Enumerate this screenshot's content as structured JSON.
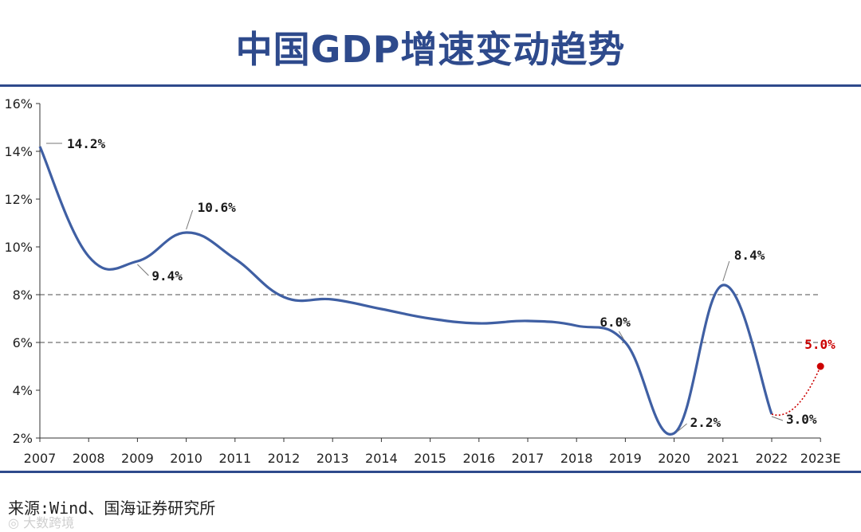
{
  "title": "中国GDP增速变动趋势",
  "source": "来源:Wind、国海证券研究所",
  "watermark": "大数跨境",
  "colors": {
    "title": "#2e4a8c",
    "rule": "#2e4a8c",
    "line": "#3f5fa3",
    "forecast": "#cc0000",
    "refline": "#888888",
    "axis": "#333333"
  },
  "chart_data": {
    "type": "line",
    "title": "中国GDP增速变动趋势",
    "xlabel": "",
    "ylabel": "",
    "categories": [
      "2007",
      "2008",
      "2009",
      "2010",
      "2011",
      "2012",
      "2013",
      "2014",
      "2015",
      "2016",
      "2017",
      "2018",
      "2019",
      "2020",
      "2021",
      "2022",
      "2023E"
    ],
    "ylim": [
      2,
      16
    ],
    "yticks": [
      2,
      4,
      6,
      8,
      10,
      12,
      14,
      16
    ],
    "ytick_labels": [
      "2%",
      "4%",
      "6%",
      "8%",
      "10%",
      "12%",
      "14%",
      "16%"
    ],
    "grid": false,
    "reference_lines": [
      8,
      6
    ],
    "series": [
      {
        "values": [
          14.2,
          9.6,
          9.4,
          10.6,
          9.5,
          7.9,
          7.8,
          7.4,
          7.0,
          6.8,
          6.9,
          6.7,
          6.0,
          2.2,
          8.4,
          3.0,
          null
        ],
        "style": "solid smooth"
      },
      {
        "values": [
          null,
          null,
          null,
          null,
          null,
          null,
          null,
          null,
          null,
          null,
          null,
          null,
          null,
          null,
          null,
          3.0,
          5.0
        ],
        "style": "dotted forecast"
      }
    ],
    "annotations": [
      {
        "category": "2007",
        "value": 14.2,
        "text": "14.2%"
      },
      {
        "category": "2009",
        "value": 9.4,
        "text": "9.4%"
      },
      {
        "category": "2010",
        "value": 10.6,
        "text": "10.6%"
      },
      {
        "category": "2019",
        "value": 6.0,
        "text": "6.0%"
      },
      {
        "category": "2020",
        "value": 2.2,
        "text": "2.2%"
      },
      {
        "category": "2021",
        "value": 8.4,
        "text": "8.4%"
      },
      {
        "category": "2022",
        "value": 3.0,
        "text": "3.0%"
      },
      {
        "category": "2023E",
        "value": 5.0,
        "text": "5.0%"
      }
    ]
  }
}
